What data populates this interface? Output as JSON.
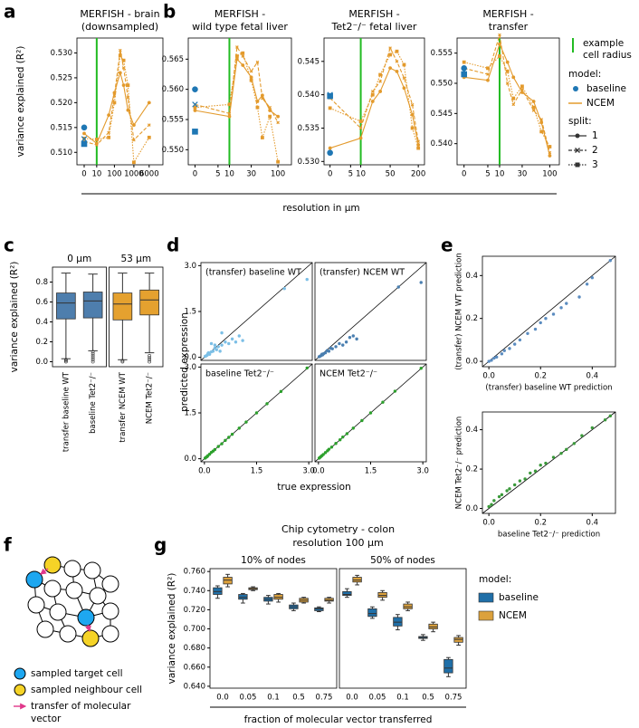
{
  "panel_labels": [
    "a",
    "b",
    "c",
    "d",
    "e",
    "f",
    "g"
  ],
  "resolution_label": "resolution in μm",
  "d_ylabel": "predicted expression",
  "d_xlabel": "true expression",
  "f_legend": {
    "target": "sampled target cell",
    "neighbour": "sampled neighbour cell",
    "transfer": [
      "transfer of molecular",
      "vector"
    ]
  },
  "legend_ab": {
    "radius_label": [
      "example",
      "cell radius"
    ],
    "radius_color": "#22bb22",
    "model_title": "model:",
    "models": [
      {
        "name": "baseline",
        "color": "#1f77b4"
      },
      {
        "name": "NCEM",
        "color": "#e39a2c"
      }
    ],
    "split_title": "split:",
    "splits": [
      {
        "name": "1",
        "dash": "none",
        "marker": "circle"
      },
      {
        "name": "2",
        "dash": "4 2",
        "marker": "x"
      },
      {
        "name": "3",
        "dash": "1.5 1.5",
        "marker": "square"
      }
    ]
  },
  "chart_data": [
    {
      "type": "line",
      "title": [
        "MERFISH - brain",
        "(downsampled)"
      ],
      "ylabel": "variance explained (R²)",
      "xscale": "symlog",
      "xlim": [
        -4,
        30000
      ],
      "xticks": [
        0,
        10,
        100,
        1000,
        6000
      ],
      "ylim": [
        0.5075,
        0.533
      ],
      "yticks": [
        {
          "value": 0.51,
          "label": "0.510"
        },
        {
          "value": 0.515,
          "label": "0.515"
        },
        {
          "value": 0.52,
          "label": "0.520"
        },
        {
          "value": 0.525,
          "label": "0.525"
        },
        {
          "value": 0.53,
          "label": "0.530"
        }
      ],
      "radius": 10,
      "x": [
        0,
        10,
        50,
        100,
        200,
        300,
        500,
        1000,
        6000
      ],
      "baseline": [
        0.515,
        0.5127,
        0.5117
      ],
      "ncem": [
        [
          0.5138,
          0.5118,
          0.5175,
          0.522,
          0.526,
          0.5235,
          0.5185,
          0.5155,
          0.52
        ],
        [
          0.5122,
          0.5115,
          0.514,
          0.5215,
          0.5305,
          0.527,
          0.521,
          0.5125,
          0.5155
        ],
        [
          0.5128,
          0.5126,
          0.513,
          0.52,
          0.5295,
          0.5285,
          0.5235,
          0.508,
          0.513
        ]
      ]
    },
    {
      "type": "line",
      "title": [
        "MERFISH -",
        "wild type fetal liver"
      ],
      "xscale": "symlog",
      "xlim": [
        -1,
        180
      ],
      "xticks": [
        0,
        5,
        10,
        30,
        100
      ],
      "ylim": [
        0.5475,
        0.5685
      ],
      "yticks": [
        {
          "value": 0.55,
          "label": "0.550"
        },
        {
          "value": 0.555,
          "label": "0.555"
        },
        {
          "value": 0.56,
          "label": "0.560"
        },
        {
          "value": 0.565,
          "label": "0.565"
        }
      ],
      "radius": 10,
      "x": [
        0,
        10,
        15,
        20,
        30,
        40,
        50,
        70,
        100
      ],
      "baseline": [
        0.56,
        0.5575,
        0.553
      ],
      "ncem": [
        [
          0.5565,
          0.5555,
          0.565,
          0.564,
          0.562,
          0.558,
          0.559,
          0.5565,
          0.5555
        ],
        [
          0.5575,
          0.556,
          0.567,
          0.5655,
          0.563,
          0.5645,
          0.5585,
          0.557,
          0.5545
        ],
        [
          0.557,
          0.5575,
          0.5655,
          0.566,
          0.5615,
          0.557,
          0.552,
          0.5555,
          0.548
        ]
      ]
    },
    {
      "type": "line",
      "title": [
        "MERFISH -",
        "Tet2⁻/⁻  fetal liver"
      ],
      "xscale": "symlog",
      "xlim": [
        -1,
        270
      ],
      "xticks": [
        0,
        5,
        10,
        50,
        200
      ],
      "ylim": [
        0.5295,
        0.5485
      ],
      "yticks": [
        {
          "value": 0.53,
          "label": "0.530"
        },
        {
          "value": 0.535,
          "label": "0.535"
        },
        {
          "value": 0.54,
          "label": "0.540"
        },
        {
          "value": 0.545,
          "label": "0.545"
        }
      ],
      "radius": 10,
      "x": [
        0,
        10,
        20,
        30,
        50,
        70,
        100,
        150,
        200
      ],
      "baseline": [
        0.5313,
        0.54,
        0.5398
      ],
      "ncem": [
        [
          0.532,
          0.5335,
          0.539,
          0.5405,
          0.544,
          0.5435,
          0.541,
          0.537,
          0.5325
        ],
        [
          0.5395,
          0.535,
          0.5405,
          0.542,
          0.547,
          0.545,
          0.5425,
          0.5385,
          0.533
        ],
        [
          0.538,
          0.536,
          0.54,
          0.543,
          0.546,
          0.5465,
          0.5445,
          0.535,
          0.532
        ]
      ]
    },
    {
      "type": "line",
      "title": [
        "MERFISH -",
        "transfer"
      ],
      "xscale": "symlog",
      "xlim": [
        -1,
        150
      ],
      "xticks": [
        0,
        5,
        10,
        30,
        100
      ],
      "ylim": [
        0.5365,
        0.5575
      ],
      "yticks": [
        {
          "value": 0.54,
          "label": "0.540"
        },
        {
          "value": 0.545,
          "label": "0.545"
        },
        {
          "value": 0.55,
          "label": "0.550"
        },
        {
          "value": 0.555,
          "label": "0.555"
        }
      ],
      "radius": 10,
      "x": [
        0,
        5,
        10,
        15,
        20,
        30,
        50,
        70,
        100
      ],
      "baseline": [
        0.5525,
        0.552,
        0.5515
      ],
      "ncem": [
        [
          0.551,
          0.5505,
          0.5565,
          0.5535,
          0.551,
          0.5485,
          0.547,
          0.5435,
          0.538
        ],
        [
          0.5525,
          0.5515,
          0.558,
          0.55,
          0.5465,
          0.549,
          0.5455,
          0.544,
          0.5385
        ],
        [
          0.5535,
          0.5525,
          0.5545,
          0.552,
          0.5475,
          0.5495,
          0.546,
          0.542,
          0.5395
        ]
      ]
    },
    {
      "type": "box",
      "ylabel": "variance explained (R²)",
      "ylim": [
        -0.05,
        0.95
      ],
      "yticks": [
        {
          "value": 0,
          "label": "0.0"
        },
        0.2,
        0.4,
        0.6,
        0.8
      ],
      "facets": [
        {
          "label": "0 μm",
          "categories": [
            "transfer baseline WT",
            "baseline Tet2⁻/⁻"
          ],
          "colors": [
            "#4e7ead",
            "#4e7ead"
          ],
          "boxes": [
            [
              0.03,
              0.43,
              0.59,
              0.69,
              0.89
            ],
            [
              0.11,
              0.44,
              0.61,
              0.7,
              0.88
            ]
          ],
          "outliers": [
            [
              0.0,
              0.01,
              0.02
            ],
            [
              0.0,
              0.02,
              0.04,
              0.06,
              0.08,
              0.1
            ]
          ]
        },
        {
          "label": "53 μm",
          "categories": [
            "transfer NCEM WT",
            "NCEM Tet2⁻/⁻"
          ],
          "colors": [
            "#e5a12f",
            "#e5a12f"
          ],
          "boxes": [
            [
              0.02,
              0.42,
              0.58,
              0.69,
              0.89
            ],
            [
              0.09,
              0.47,
              0.62,
              0.72,
              0.89
            ]
          ],
          "outliers": [
            [
              0.0,
              0.01
            ],
            [
              0.0,
              0.02,
              0.04,
              0.06
            ]
          ]
        }
      ]
    },
    {
      "type": "scatter",
      "label": "(transfer) baseline WT",
      "color": "#7cbfe6",
      "xlim": [
        -0.1,
        3.1
      ],
      "ylim": [
        -0.1,
        3.1
      ],
      "yticks": [
        {
          "value": 0,
          "label": "0.0"
        },
        1.5,
        {
          "value": 3,
          "label": "3.0"
        }
      ],
      "x": [
        0.02,
        0.05,
        0.08,
        0.1,
        0.12,
        0.15,
        0.2,
        0.25,
        0.3,
        0.35,
        0.4,
        0.45,
        0.5,
        0.6,
        0.7,
        0.8,
        0.9,
        1.0,
        1.1,
        0.2,
        0.3,
        0.5,
        2.3,
        2.95
      ],
      "y": [
        0.03,
        0.05,
        0.07,
        0.12,
        0.15,
        0.1,
        0.18,
        0.2,
        0.3,
        0.25,
        0.35,
        0.2,
        0.4,
        0.5,
        0.45,
        0.6,
        0.5,
        0.7,
        0.55,
        0.45,
        0.4,
        0.8,
        2.25,
        2.55
      ]
    },
    {
      "type": "scatter",
      "label": "(transfer) NCEM WT",
      "color": "#4a7fb0",
      "xlim": [
        -0.1,
        3.1
      ],
      "ylim": [
        -0.1,
        3.1
      ],
      "x": [
        0.02,
        0.05,
        0.08,
        0.1,
        0.12,
        0.15,
        0.2,
        0.25,
        0.3,
        0.35,
        0.4,
        0.5,
        0.6,
        0.7,
        0.8,
        0.9,
        1.0,
        1.1,
        2.3,
        2.95
      ],
      "y": [
        0.02,
        0.04,
        0.06,
        0.1,
        0.08,
        0.12,
        0.15,
        0.22,
        0.2,
        0.3,
        0.28,
        0.35,
        0.45,
        0.4,
        0.5,
        0.65,
        0.7,
        0.6,
        2.3,
        2.45
      ]
    },
    {
      "type": "scatter",
      "label": "baseline Tet2⁻/⁻",
      "color": "#2ca02c",
      "xlim": [
        -0.1,
        3.1
      ],
      "ylim": [
        -0.1,
        3.1
      ],
      "xticks": [
        {
          "value": 0,
          "label": "0.0"
        },
        1.5,
        {
          "value": 3,
          "label": "3.0"
        }
      ],
      "yticks": [
        {
          "value": 0,
          "label": "0.0"
        },
        1.5,
        {
          "value": 3,
          "label": "3.0"
        }
      ],
      "x": [
        0.02,
        0.05,
        0.08,
        0.1,
        0.15,
        0.2,
        0.25,
        0.3,
        0.4,
        0.5,
        0.6,
        0.7,
        0.8,
        1.0,
        1.2,
        1.5,
        1.8,
        2.2,
        2.95
      ],
      "y": [
        0.02,
        0.05,
        0.07,
        0.1,
        0.15,
        0.21,
        0.25,
        0.3,
        0.4,
        0.49,
        0.6,
        0.7,
        0.8,
        1.0,
        1.2,
        1.5,
        1.8,
        2.2,
        2.97
      ]
    },
    {
      "type": "scatter",
      "label": "NCEM Tet2⁻/⁻",
      "color": "#2ca02c",
      "xlim": [
        -0.1,
        3.1
      ],
      "ylim": [
        -0.1,
        3.1
      ],
      "xticks": [
        {
          "value": 0,
          "label": "0.0"
        },
        1.5,
        {
          "value": 3,
          "label": "3.0"
        }
      ],
      "x": [
        0.02,
        0.04,
        0.07,
        0.1,
        0.14,
        0.2,
        0.26,
        0.3,
        0.38,
        0.5,
        0.62,
        0.7,
        0.82,
        1.0,
        1.25,
        1.5,
        1.85,
        2.2,
        2.95
      ],
      "y": [
        0.02,
        0.04,
        0.07,
        0.1,
        0.14,
        0.2,
        0.26,
        0.31,
        0.38,
        0.5,
        0.62,
        0.71,
        0.82,
        1.0,
        1.25,
        1.5,
        1.85,
        2.21,
        2.96
      ]
    },
    {
      "type": "scatter",
      "color": "#5b8cc0",
      "xlabel": "(transfer) baseline WT prediction",
      "ylabel": "(transfer) NCEM WT prediction",
      "xlim": [
        -0.025,
        0.49
      ],
      "ylim": [
        -0.025,
        0.49
      ],
      "xticks": [
        {
          "value": 0,
          "label": "0.0"
        },
        0.2,
        0.4
      ],
      "yticks": [
        {
          "value": 0,
          "label": "0.0"
        },
        0.2,
        0.4
      ],
      "x": [
        0,
        0.01,
        0.02,
        0.03,
        0.05,
        0.06,
        0.08,
        0.1,
        0.12,
        0.15,
        0.18,
        0.2,
        0.22,
        0.25,
        0.28,
        0.3,
        0.35,
        0.38,
        0.4,
        0.47
      ],
      "y": [
        0,
        0.005,
        0.015,
        0.02,
        0.035,
        0.05,
        0.06,
        0.08,
        0.1,
        0.13,
        0.15,
        0.18,
        0.2,
        0.22,
        0.25,
        0.27,
        0.3,
        0.36,
        0.39,
        0.47
      ]
    },
    {
      "type": "scatter",
      "color": "#3a9a3a",
      "xlabel": "baseline Tet2⁻/⁻ prediction",
      "ylabel": "NCEM Tet2⁻/⁻ prediction",
      "xlim": [
        -0.025,
        0.49
      ],
      "ylim": [
        -0.025,
        0.49
      ],
      "xticks": [
        {
          "value": 0,
          "label": "0.0"
        },
        0.2,
        0.4
      ],
      "yticks": [
        {
          "value": 0,
          "label": "0.0"
        },
        0.2,
        0.4
      ],
      "x": [
        0,
        0.01,
        0.02,
        0.04,
        0.05,
        0.07,
        0.08,
        0.1,
        0.12,
        0.14,
        0.16,
        0.18,
        0.2,
        0.22,
        0.25,
        0.28,
        0.3,
        0.33,
        0.36,
        0.4,
        0.45,
        0.47
      ],
      "y": [
        0.01,
        0.02,
        0.04,
        0.06,
        0.07,
        0.09,
        0.1,
        0.12,
        0.14,
        0.15,
        0.18,
        0.19,
        0.22,
        0.23,
        0.26,
        0.28,
        0.3,
        0.33,
        0.37,
        0.41,
        0.45,
        0.47
      ]
    },
    {
      "type": "box",
      "title": [
        "Chip cytometry - colon",
        "resolution 100 μm"
      ],
      "ylabel": "variance explained (R²)",
      "xlabel": "fraction of molecular vector transferred",
      "ylim": [
        0.638,
        0.763
      ],
      "yticks": [
        {
          "value": 0.64,
          "label": "0.640"
        },
        {
          "value": 0.66,
          "label": "0.660"
        },
        {
          "value": 0.68,
          "label": "0.680"
        },
        {
          "value": 0.7,
          "label": "0.700"
        },
        {
          "value": 0.72,
          "label": "0.720"
        },
        {
          "value": 0.74,
          "label": "0.740"
        },
        {
          "value": 0.76,
          "label": "0.760"
        }
      ],
      "categories": [
        "0.0",
        "0.05",
        "0.1",
        "0.5",
        "0.75"
      ],
      "legend_title": "model:",
      "series": [
        {
          "name": "baseline",
          "color": "#1f6fa8"
        },
        {
          "name": "NCEM",
          "color": "#dca13c"
        }
      ],
      "facets": [
        {
          "label": "10% of nodes",
          "series_boxes": [
            [
              [
                0.732,
                0.736,
                0.739,
                0.743,
                0.745
              ],
              [
                0.727,
                0.731,
                0.733,
                0.736,
                0.737
              ],
              [
                0.726,
                0.729,
                0.731,
                0.733,
                0.735
              ],
              [
                0.719,
                0.721,
                0.723,
                0.725,
                0.727
              ],
              [
                0.718,
                0.719,
                0.721,
                0.722,
                0.723
              ]
            ],
            [
              [
                0.744,
                0.747,
                0.751,
                0.754,
                0.757
              ],
              [
                0.74,
                0.741,
                0.742,
                0.743,
                0.744
              ],
              [
                0.728,
                0.731,
                0.733,
                0.736,
                0.737
              ],
              [
                0.727,
                0.728,
                0.73,
                0.732,
                0.733
              ],
              [
                0.727,
                0.729,
                0.73,
                0.732,
                0.733
              ]
            ]
          ]
        },
        {
          "label": "50% of nodes",
          "series_boxes": [
            [
              [
                0.733,
                0.735,
                0.736,
                0.739,
                0.742
              ],
              [
                0.711,
                0.713,
                0.716,
                0.721,
                0.723
              ],
              [
                0.699,
                0.703,
                0.707,
                0.712,
                0.715
              ],
              [
                0.688,
                0.69,
                0.691,
                0.692,
                0.694
              ],
              [
                0.65,
                0.654,
                0.659,
                0.668,
                0.67
              ]
            ],
            [
              [
                0.746,
                0.749,
                0.751,
                0.754,
                0.756
              ],
              [
                0.73,
                0.733,
                0.735,
                0.738,
                0.74
              ],
              [
                0.719,
                0.721,
                0.723,
                0.726,
                0.728
              ],
              [
                0.697,
                0.7,
                0.702,
                0.705,
                0.707
              ],
              [
                0.683,
                0.686,
                0.689,
                0.691,
                0.693
              ]
            ]
          ]
        }
      ]
    }
  ]
}
